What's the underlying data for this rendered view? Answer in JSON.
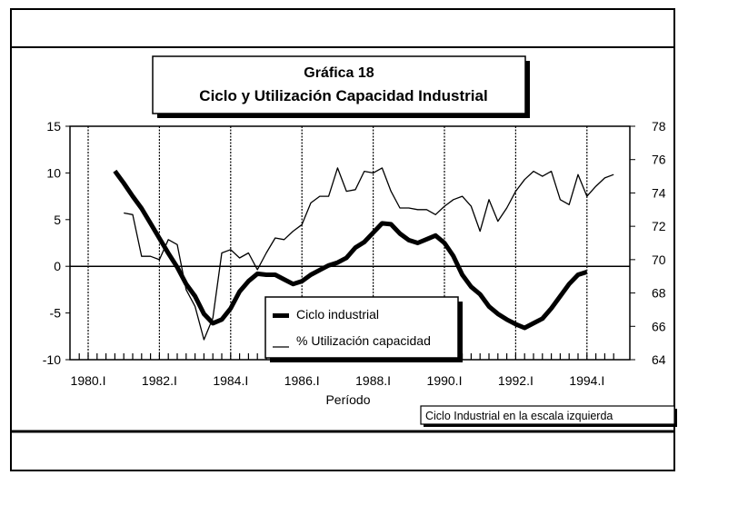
{
  "chart_data": {
    "type": "line",
    "title": "Gráfica 18",
    "subtitle": "Ciclo y Utilización Capacidad Industrial",
    "xlabel": "Período",
    "note": "Ciclo Industrial en la escala izquierda",
    "x_tick_labels": [
      "1980.I",
      "1982.I",
      "1984.I",
      "1986.I",
      "1988.I",
      "1990.I",
      "1992.I",
      "1994.I"
    ],
    "y_left": {
      "range": [
        -10,
        15
      ],
      "ticks": [
        15,
        10,
        5,
        0,
        -5,
        -10
      ]
    },
    "y_right": {
      "range": [
        64,
        78
      ],
      "ticks": [
        78,
        76,
        74,
        72,
        70,
        68,
        66,
        64
      ]
    },
    "x_range": [
      "1979.III",
      "1995.I"
    ],
    "grid": "vertical dotted lines at labelled years; horizontal line at 0",
    "legend_placement": "bottom-center",
    "colors": {
      "line": "#000000",
      "background": "#ffffff"
    },
    "series": [
      {
        "name": "Ciclo industrial",
        "axis": "left",
        "style": "thick",
        "x": [
          "1980.IV",
          "1981.I",
          "1981.II",
          "1981.III",
          "1981.IV",
          "1982.I",
          "1982.II",
          "1982.III",
          "1982.IV",
          "1983.I",
          "1983.II",
          "1983.III",
          "1983.IV",
          "1984.I",
          "1984.II",
          "1984.III",
          "1984.IV",
          "1985.I",
          "1985.II",
          "1985.III",
          "1985.IV",
          "1986.I",
          "1986.II",
          "1986.III",
          "1986.IV",
          "1987.I",
          "1987.II",
          "1987.III",
          "1987.IV",
          "1988.I",
          "1988.II",
          "1988.III",
          "1988.IV",
          "1989.I",
          "1989.II",
          "1989.III",
          "1989.IV",
          "1990.I",
          "1990.II",
          "1990.III",
          "1990.IV",
          "1991.I",
          "1991.II",
          "1991.III",
          "1991.IV",
          "1992.I",
          "1992.II",
          "1992.III",
          "1992.IV",
          "1993.I",
          "1993.II",
          "1993.III",
          "1993.IV",
          "1994.I"
        ],
        "values": [
          10.2,
          8.9,
          7.5,
          6.2,
          4.6,
          3.0,
          1.4,
          -0.1,
          -1.9,
          -3.2,
          -5.1,
          -6.1,
          -5.7,
          -4.5,
          -2.7,
          -1.6,
          -0.8,
          -0.9,
          -0.9,
          -1.4,
          -1.9,
          -1.6,
          -0.9,
          -0.4,
          0.1,
          0.4,
          0.9,
          2.0,
          2.6,
          3.6,
          4.6,
          4.5,
          3.5,
          2.8,
          2.5,
          2.9,
          3.3,
          2.5,
          1.1,
          -0.9,
          -2.2,
          -3.0,
          -4.3,
          -5.1,
          -5.7,
          -6.2,
          -6.6,
          -6.1,
          -5.6,
          -4.5,
          -3.2,
          -1.9,
          -0.9,
          -0.6
        ]
      },
      {
        "name": "% Utilización capacidad",
        "axis": "right",
        "style": "thin",
        "x": [
          "1981.I",
          "1981.II",
          "1981.III",
          "1981.IV",
          "1982.I",
          "1982.II",
          "1982.III",
          "1982.IV",
          "1983.I",
          "1983.II",
          "1983.III",
          "1983.IV",
          "1984.I",
          "1984.II",
          "1984.III",
          "1984.IV",
          "1985.I",
          "1985.II",
          "1985.III",
          "1985.IV",
          "1986.I",
          "1986.II",
          "1986.III",
          "1986.IV",
          "1987.I",
          "1987.II",
          "1987.III",
          "1987.IV",
          "1988.I",
          "1988.II",
          "1988.III",
          "1988.IV",
          "1989.I",
          "1989.II",
          "1989.III",
          "1989.IV",
          "1990.I",
          "1990.II",
          "1990.III",
          "1990.IV",
          "1991.I",
          "1991.II",
          "1991.III",
          "1991.IV",
          "1992.I",
          "1992.II",
          "1992.III",
          "1992.IV",
          "1993.I",
          "1993.II",
          "1993.III",
          "1993.IV",
          "1994.I",
          "1994.II",
          "1994.III",
          "1994.IV"
        ],
        "values": [
          72.8,
          72.7,
          70.2,
          70.2,
          70.0,
          71.2,
          70.9,
          68.2,
          67.2,
          65.2,
          66.5,
          70.4,
          70.6,
          70.1,
          70.4,
          69.4,
          70.4,
          71.3,
          71.2,
          71.7,
          72.1,
          73.4,
          73.8,
          73.8,
          75.5,
          74.1,
          74.2,
          75.3,
          75.2,
          75.5,
          74.1,
          73.1,
          73.1,
          73.0,
          73.0,
          72.7,
          73.2,
          73.6,
          73.8,
          73.2,
          71.7,
          73.6,
          72.3,
          73.1,
          74.1,
          74.8,
          75.3,
          75.0,
          75.3,
          73.6,
          73.3,
          75.1,
          73.8,
          74.4,
          74.9,
          75.1
        ]
      }
    ]
  }
}
